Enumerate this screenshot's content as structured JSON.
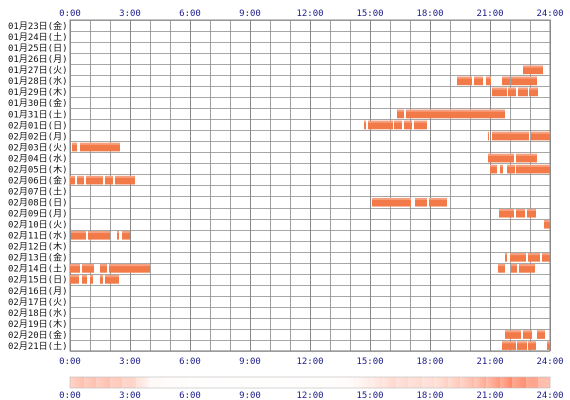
{
  "chart_data": {
    "type": "activity-timeline",
    "x_range_hours": [
      0,
      24
    ],
    "x_ticks": [
      "0:00",
      "3:00",
      "6:00",
      "9:00",
      "12:00",
      "15:00",
      "18:00",
      "21:00",
      "24:00"
    ],
    "grid": true,
    "colors": {
      "bar": "#f27a48",
      "bar_light": "#f6a080",
      "grid": "#8a8a8a",
      "tick_text": "#1a1a8a"
    },
    "rows": [
      {
        "label": "01月23日(金)",
        "segments": []
      },
      {
        "label": "01月24日(土)",
        "segments": []
      },
      {
        "label": "01月25日(日)",
        "segments": []
      },
      {
        "label": "01月26日(月)",
        "segments": []
      },
      {
        "label": "01月27日(火)",
        "segments": [
          [
            22.65,
            23.65
          ]
        ]
      },
      {
        "label": "01月28日(水)",
        "segments": [
          [
            19.35,
            20.1
          ],
          [
            20.2,
            20.65
          ],
          [
            20.8,
            21.05
          ],
          [
            21.6,
            22.0
          ],
          [
            22.05,
            23.35
          ]
        ]
      },
      {
        "label": "01月29日(木)",
        "segments": [
          [
            21.1,
            21.85
          ],
          [
            21.9,
            22.3
          ],
          [
            22.4,
            22.9
          ],
          [
            22.95,
            23.4
          ]
        ]
      },
      {
        "label": "01月30日(金)",
        "segments": []
      },
      {
        "label": "01月31日(土)",
        "segments": [
          [
            16.35,
            16.7
          ],
          [
            16.8,
            21.75
          ]
        ]
      },
      {
        "label": "02月01日(日)",
        "segments": [
          [
            14.7,
            14.8
          ],
          [
            14.9,
            16.15
          ],
          [
            16.2,
            16.6
          ],
          [
            16.7,
            17.1
          ],
          [
            17.2,
            17.85
          ]
        ]
      },
      {
        "label": "02月02日(月)",
        "segments": [
          [
            20.9,
            20.95
          ],
          [
            21.1,
            22.95
          ],
          [
            23.05,
            24.0
          ]
        ]
      },
      {
        "label": "02月03日(火)",
        "segments": [
          [
            0.1,
            0.35
          ],
          [
            0.5,
            2.5
          ]
        ]
      },
      {
        "label": "02月04日(水)",
        "segments": [
          [
            20.9,
            22.2
          ],
          [
            22.3,
            23.35
          ]
        ]
      },
      {
        "label": "02月05日(木)",
        "segments": [
          [
            21.0,
            21.35
          ],
          [
            21.5,
            21.65
          ],
          [
            21.85,
            22.25
          ],
          [
            22.3,
            24.0
          ]
        ]
      },
      {
        "label": "02月06日(金)",
        "segments": [
          [
            0.0,
            0.25
          ],
          [
            0.35,
            0.7
          ],
          [
            0.8,
            1.65
          ],
          [
            1.75,
            2.15
          ],
          [
            2.25,
            3.25
          ]
        ]
      },
      {
        "label": "02月07日(土)",
        "segments": []
      },
      {
        "label": "02月08日(日)",
        "segments": [
          [
            15.1,
            17.05
          ],
          [
            17.25,
            17.85
          ],
          [
            17.95,
            18.85
          ]
        ]
      },
      {
        "label": "02月09日(月)",
        "segments": [
          [
            21.45,
            22.2
          ],
          [
            22.3,
            22.75
          ],
          [
            22.85,
            23.3
          ]
        ]
      },
      {
        "label": "02月10日(火)",
        "segments": [
          [
            23.7,
            24.0
          ]
        ]
      },
      {
        "label": "02月11日(水)",
        "segments": [
          [
            0.05,
            0.8
          ],
          [
            0.9,
            2.0
          ],
          [
            2.35,
            2.45
          ],
          [
            2.6,
            3.0
          ]
        ]
      },
      {
        "label": "02月12日(木)",
        "segments": []
      },
      {
        "label": "02月13日(金)",
        "segments": [
          [
            21.75,
            21.85
          ],
          [
            22.0,
            22.8
          ],
          [
            22.9,
            23.5
          ],
          [
            23.6,
            24.0
          ]
        ]
      },
      {
        "label": "02月14日(土)",
        "segments": [
          [
            0.0,
            0.5
          ],
          [
            0.6,
            1.2
          ],
          [
            1.5,
            1.85
          ],
          [
            1.95,
            4.0
          ]
        ],
        "segments_b": [
          [
            21.4,
            21.75
          ],
          [
            22.05,
            22.35
          ],
          [
            22.45,
            23.25
          ]
        ]
      },
      {
        "label": "02月15日(日)",
        "segments": [
          [
            0.0,
            0.45
          ],
          [
            0.6,
            0.85
          ],
          [
            1.0,
            1.15
          ],
          [
            1.5,
            1.65
          ],
          [
            1.75,
            2.45
          ]
        ]
      },
      {
        "label": "02月16日(月)",
        "segments": []
      },
      {
        "label": "02月17日(火)",
        "segments": []
      },
      {
        "label": "02月18日(水)",
        "segments": []
      },
      {
        "label": "02月19日(木)",
        "segments": []
      },
      {
        "label": "02月20日(金)",
        "segments": [
          [
            21.75,
            22.55
          ],
          [
            22.65,
            23.1
          ],
          [
            23.35,
            23.75
          ]
        ]
      },
      {
        "label": "02月21日(土)",
        "segments": [
          [
            21.6,
            22.3
          ],
          [
            22.35,
            22.85
          ],
          [
            22.9,
            23.3
          ],
          [
            23.85,
            24.0
          ]
        ]
      }
    ],
    "summary_bar": {
      "x_ticks": [
        "0:00",
        "3:00",
        "6:00",
        "9:00",
        "12:00",
        "15:00",
        "18:00",
        "21:00",
        "24:00"
      ],
      "hourly_intensity": [
        0.35,
        0.38,
        0.36,
        0.28,
        0.04,
        0.02,
        0.01,
        0.01,
        0.01,
        0.01,
        0.01,
        0.01,
        0.01,
        0.01,
        0.03,
        0.12,
        0.22,
        0.22,
        0.2,
        0.28,
        0.38,
        0.55,
        0.7,
        0.62
      ]
    }
  }
}
